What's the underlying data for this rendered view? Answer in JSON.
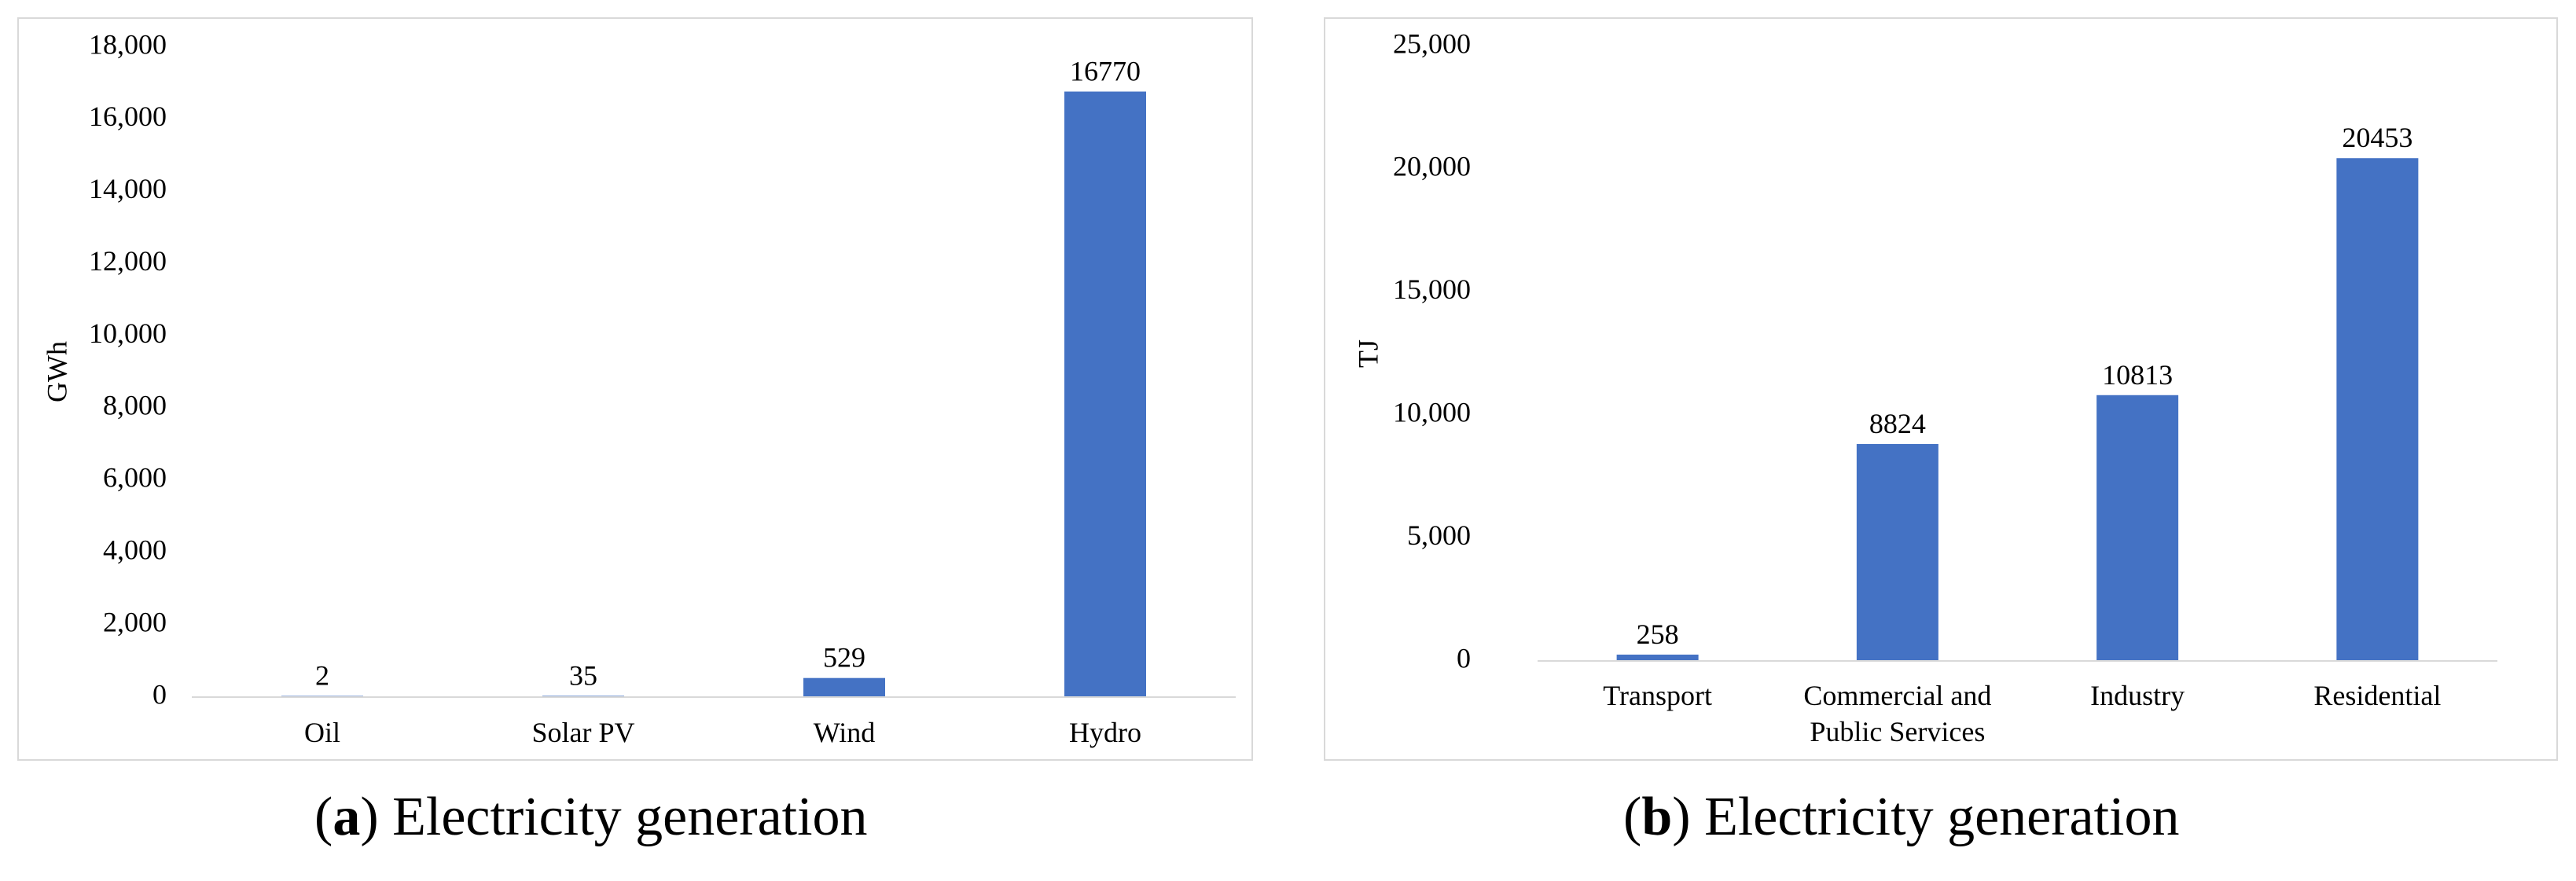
{
  "colors": {
    "bar": "#4472c4",
    "axis": "#d9d9d9",
    "border": "#d9d9d9"
  },
  "chart_data": [
    {
      "type": "bar",
      "categories": [
        "Oil",
        "Solar PV",
        "Wind",
        "Hydro"
      ],
      "values": [
        2,
        35,
        529,
        16770
      ],
      "data_labels": [
        "2",
        "35",
        "529",
        "16770"
      ],
      "ylabel": "GWh",
      "ylim": [
        0,
        18000
      ],
      "yticks": [
        0,
        2000,
        4000,
        6000,
        8000,
        10000,
        12000,
        14000,
        16000,
        18000
      ],
      "ytick_labels": [
        "0",
        "2,000",
        "4,000",
        "6,000",
        "8,000",
        "10,000",
        "12,000",
        "14,000",
        "16,000",
        "18,000"
      ],
      "grid": false,
      "caption_letter": "a",
      "caption_text": "Electricity generation"
    },
    {
      "type": "bar",
      "categories": [
        "Transport",
        "Commercial and Public Services",
        "Industry",
        "Residential"
      ],
      "category_lines": [
        [
          "Transport"
        ],
        [
          "Commercial and",
          "Public Services"
        ],
        [
          "Industry"
        ],
        [
          "Residential"
        ]
      ],
      "values": [
        258,
        8824,
        10813,
        20453
      ],
      "data_labels": [
        "258",
        "8824",
        "10813",
        "20453"
      ],
      "ylabel": "TJ",
      "ylim": [
        0,
        25000
      ],
      "yticks": [
        0,
        5000,
        10000,
        15000,
        20000,
        25000
      ],
      "ytick_labels": [
        "0",
        "5,000",
        "10,000",
        "15,000",
        "20,000",
        "25,000"
      ],
      "grid": false,
      "caption_letter": "b",
      "caption_text": "Electricity generation"
    }
  ]
}
